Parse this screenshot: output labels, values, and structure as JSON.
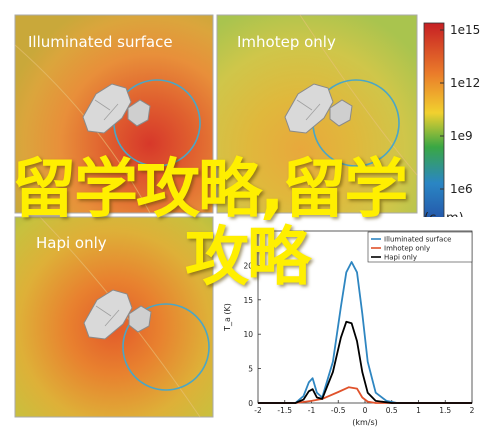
{
  "panels": [
    {
      "title": "Illuminated surface"
    },
    {
      "title": "Imhotep only"
    },
    {
      "title": "Hapi only"
    }
  ],
  "colorbar": {
    "ticks": [
      "1e15",
      "1e12",
      "1e9",
      "1e6"
    ],
    "unit_fragment": "(c",
    "unit_fragment2": "m)"
  },
  "overlay": {
    "line1": "留学攻略,留学",
    "line2": "攻略"
  },
  "colors": {
    "illuminated": "#2e86c1",
    "imhotep": "#e0522b",
    "hapi": "#000000"
  },
  "chart_data": {
    "type": "line",
    "xlabel": "(km/s)",
    "ylabel": "T_a (K)",
    "xlim": [
      -2,
      2
    ],
    "ylim": [
      0,
      25
    ],
    "xticks": [
      -2,
      -1.5,
      -1,
      -0.5,
      0,
      0.5,
      1,
      1.5,
      2
    ],
    "yticks": [
      0,
      5,
      10,
      15,
      20
    ],
    "legend_position": "top-right",
    "series": [
      {
        "name": "Illuminated surface",
        "color": "#2e86c1",
        "x": [
          -2,
          -1.3,
          -1.15,
          -1.05,
          -0.98,
          -0.9,
          -0.8,
          -0.6,
          -0.45,
          -0.35,
          -0.25,
          -0.15,
          -0.05,
          0.05,
          0.2,
          0.4,
          0.6,
          1,
          2
        ],
        "y": [
          0,
          0,
          1,
          3,
          3.6,
          1.5,
          0.8,
          6,
          14,
          19,
          20.5,
          19,
          13,
          6,
          1.5,
          0.3,
          0,
          0,
          0
        ]
      },
      {
        "name": "Imhotep only",
        "color": "#e0522b",
        "x": [
          -2,
          -1.3,
          -1.0,
          -0.8,
          -0.5,
          -0.3,
          -0.15,
          -0.05,
          0.05,
          0.2,
          0.5,
          2
        ],
        "y": [
          0,
          0,
          0.3,
          0.6,
          1.6,
          2.3,
          2.1,
          0.8,
          0.2,
          0,
          0,
          0
        ]
      },
      {
        "name": "Hapi only",
        "color": "#000000",
        "x": [
          -2,
          -1.3,
          -1.15,
          -1.05,
          -0.98,
          -0.9,
          -0.8,
          -0.6,
          -0.45,
          -0.35,
          -0.25,
          -0.15,
          -0.05,
          0.05,
          0.2,
          0.5,
          2
        ],
        "y": [
          0,
          0,
          0.5,
          1.7,
          2.0,
          0.8,
          0.6,
          4.5,
          9.5,
          11.8,
          11.6,
          9,
          4.5,
          1.5,
          0.3,
          0,
          0
        ]
      }
    ]
  }
}
